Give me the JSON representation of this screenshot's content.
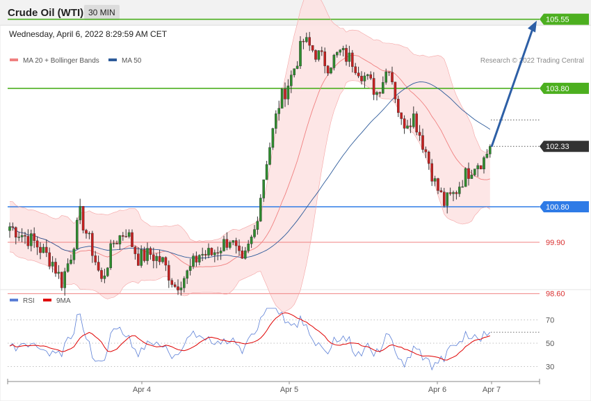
{
  "header": {
    "title": "Crude Oil (WTI)",
    "timeframe": "30 MIN"
  },
  "timestamp": "Wednesday, April 6, 2022 8:29:59 AM CET",
  "legend": {
    "ma20": {
      "label": "MA 20 + Bollinger Bands",
      "color": "#f08080"
    },
    "ma50": {
      "label": "MA 50",
      "color": "#2e5b9a"
    },
    "rsi": {
      "label": "RSI",
      "color": "#5b7fd6"
    },
    "rsi_ma": {
      "label": "9MA",
      "color": "#e00000"
    }
  },
  "copyright": "Research © 2022 Trading Central",
  "chart_data": {
    "type": "candlestick",
    "price_range": [
      97.4,
      106.3
    ],
    "levels": [
      {
        "value": "105.55",
        "price": 105.55,
        "kind": "resistance",
        "color": "#4caf1f"
      },
      {
        "value": "103.80",
        "price": 103.8,
        "kind": "resistance",
        "color": "#4caf1f"
      },
      {
        "value": "102.33",
        "price": 102.33,
        "kind": "last",
        "color": "#333333"
      },
      {
        "value": "100.80",
        "price": 100.8,
        "kind": "pivot",
        "color": "#2f7be6"
      },
      {
        "value": "99.90",
        "price": 99.9,
        "kind": "support",
        "color": "#f08080"
      },
      {
        "value": "98.60",
        "price": 98.6,
        "kind": "support",
        "color": "#f08080"
      }
    ],
    "target_price": 105.55,
    "x_labels": [
      "Apr 4",
      "Apr 5",
      "Apr 6",
      "Apr 7"
    ],
    "rsi": {
      "range": [
        18,
        82
      ],
      "levels": [
        "70",
        "50",
        "30"
      ]
    }
  }
}
